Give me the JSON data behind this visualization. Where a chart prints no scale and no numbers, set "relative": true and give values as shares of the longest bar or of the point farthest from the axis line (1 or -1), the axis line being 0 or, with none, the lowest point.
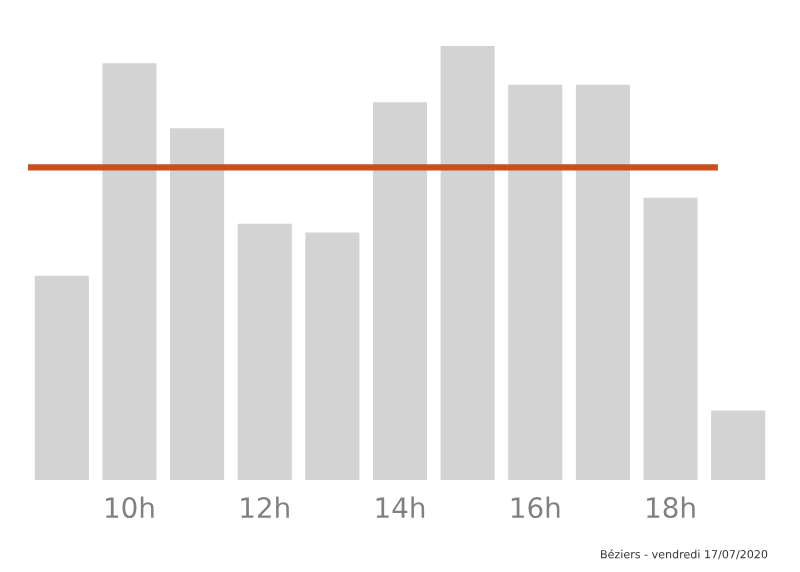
{
  "chart_data": {
    "type": "bar",
    "relative": true,
    "categories": [
      null,
      "10h",
      null,
      "12h",
      null,
      "14h",
      null,
      "16h",
      null,
      "18h",
      null
    ],
    "values": [
      0.47,
      0.96,
      0.81,
      0.59,
      0.57,
      0.87,
      1,
      0.91,
      0.91,
      0.65,
      0.16
    ],
    "color": "#d3d3d3",
    "ref_lines": [
      {
        "axis": "y",
        "value": 0.72,
        "color": "#c8501e",
        "line_style": "solid"
      }
    ],
    "annotations": [
      "Béziers - vendredi 17/07/2020"
    ],
    "grid": false
  }
}
